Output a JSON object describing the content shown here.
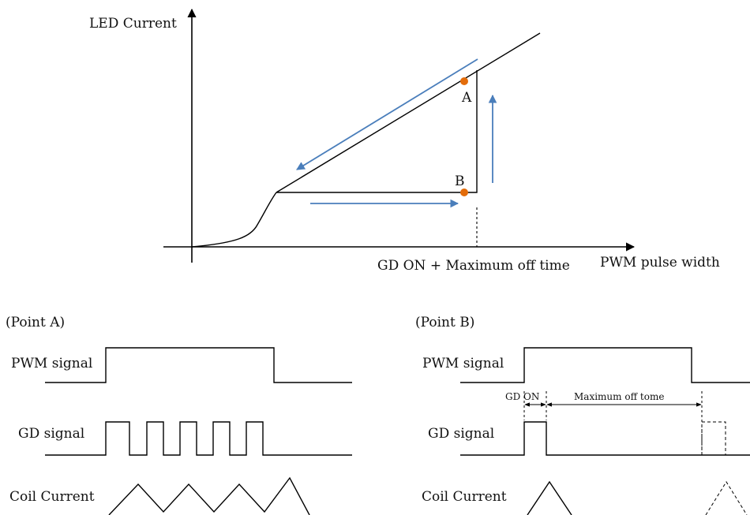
{
  "colors": {
    "line": "#000000",
    "arrow": "#4a7ebb",
    "point": "#e36c0a"
  },
  "top_graph": {
    "y_axis_label": "LED Current",
    "x_axis_label": "PWM pulse width",
    "threshold_label": "GD ON + Maximum off time",
    "point_a_label": "A",
    "point_b_label": "B"
  },
  "point_a_panel": {
    "title": "(Point A)",
    "pwm_label": "PWM signal",
    "gd_label": "GD signal",
    "coil_label": "Coil Current"
  },
  "point_b_panel": {
    "title": "(Point B)",
    "pwm_label": "PWM signal",
    "gd_label": "GD signal",
    "coil_label": "Coil Current",
    "gd_on_label": "GD ON",
    "max_off_label": "Maximum off tome"
  }
}
